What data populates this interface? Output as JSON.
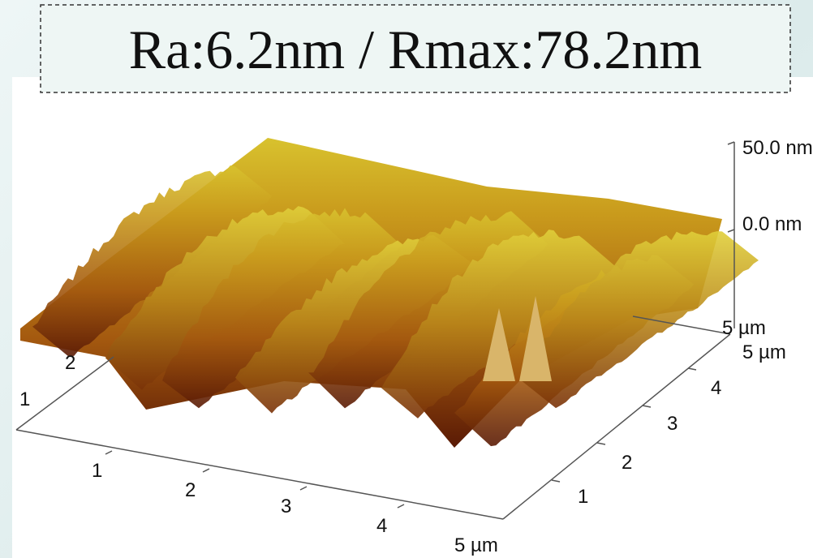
{
  "title": "Ra:6.2nm / Rmax:78.2nm",
  "z_axis": {
    "labels": [
      "50.0 nm",
      "0.0 nm"
    ]
  },
  "left_axis": {
    "labels": [
      "1",
      "2"
    ]
  },
  "x_axis": {
    "labels": [
      "1",
      "2",
      "3",
      "4",
      "5 µm"
    ]
  },
  "y_axis": {
    "labels": [
      "1",
      "2",
      "3",
      "4",
      "5 µm"
    ]
  },
  "corner_label": "5 µm"
}
